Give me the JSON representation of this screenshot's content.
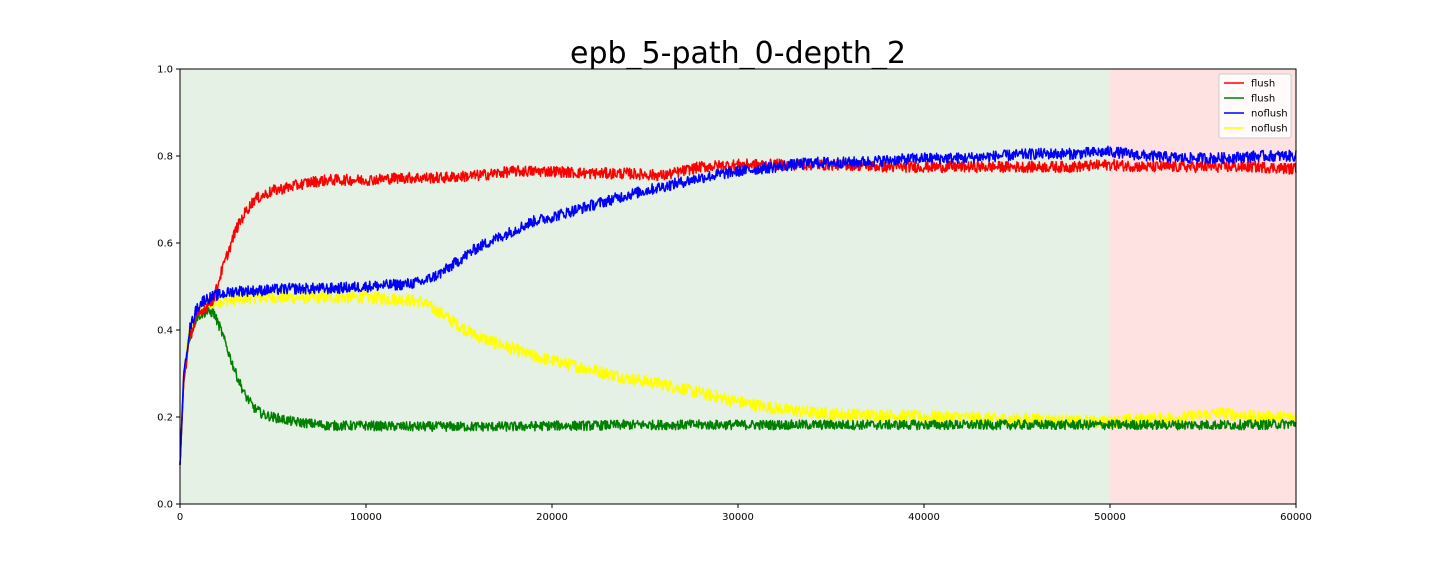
{
  "chart_data": {
    "type": "line",
    "title": "epb_5-path_0-depth_2",
    "xlabel": "",
    "ylabel": "",
    "xlim": [
      0,
      60000
    ],
    "ylim": [
      0.0,
      1.0
    ],
    "x_ticks": [
      0,
      10000,
      20000,
      30000,
      40000,
      50000,
      60000
    ],
    "x_tick_labels": [
      "0",
      "10000",
      "20000",
      "30000",
      "40000",
      "50000",
      "60000"
    ],
    "y_ticks": [
      0.0,
      0.2,
      0.4,
      0.6,
      0.8,
      1.0
    ],
    "y_tick_labels": [
      "0.0",
      "0.2",
      "0.4",
      "0.6",
      "0.8",
      "1.0"
    ],
    "grid": false,
    "legend_position": "top-right",
    "background_regions": [
      {
        "x_range": [
          0,
          50000
        ],
        "color": "#e5f1e5"
      },
      {
        "x_range": [
          50000,
          60000
        ],
        "color": "#fee2e2"
      }
    ],
    "series": [
      {
        "name": "flush",
        "color": "#ff0000",
        "noise": 0.008,
        "x": [
          0,
          200,
          500,
          900,
          1300,
          1800,
          2200,
          2600,
          3000,
          3500,
          4000,
          4500,
          5000,
          6000,
          7000,
          8000,
          10000,
          12000,
          14000,
          16000,
          18000,
          20000,
          22000,
          24000,
          26000,
          28000,
          30000,
          32000,
          34000,
          36000,
          38000,
          40000,
          42000,
          44000,
          46000,
          48000,
          50000,
          52000,
          54000,
          56000,
          58000,
          60000
        ],
        "y": [
          0.09,
          0.28,
          0.38,
          0.43,
          0.45,
          0.47,
          0.53,
          0.58,
          0.63,
          0.67,
          0.7,
          0.71,
          0.72,
          0.73,
          0.74,
          0.745,
          0.745,
          0.75,
          0.75,
          0.755,
          0.765,
          0.765,
          0.76,
          0.76,
          0.755,
          0.775,
          0.78,
          0.78,
          0.78,
          0.78,
          0.775,
          0.775,
          0.775,
          0.775,
          0.775,
          0.775,
          0.78,
          0.775,
          0.775,
          0.775,
          0.775,
          0.77
        ]
      },
      {
        "name": "flush",
        "color": "#008000",
        "noise": 0.007,
        "x": [
          0,
          200,
          500,
          900,
          1300,
          1800,
          2200,
          2600,
          3000,
          3500,
          4000,
          4500,
          5000,
          6000,
          7000,
          8000,
          10000,
          12000,
          14000,
          16000,
          18000,
          20000,
          22000,
          24000,
          26000,
          28000,
          30000,
          32000,
          34000,
          36000,
          38000,
          40000,
          42000,
          44000,
          46000,
          48000,
          50000,
          52000,
          54000,
          56000,
          58000,
          60000
        ],
        "y": [
          0.09,
          0.28,
          0.38,
          0.43,
          0.44,
          0.44,
          0.4,
          0.35,
          0.3,
          0.25,
          0.22,
          0.205,
          0.2,
          0.19,
          0.185,
          0.18,
          0.18,
          0.178,
          0.178,
          0.178,
          0.178,
          0.18,
          0.18,
          0.182,
          0.182,
          0.182,
          0.182,
          0.182,
          0.182,
          0.182,
          0.182,
          0.182,
          0.182,
          0.182,
          0.182,
          0.182,
          0.182,
          0.182,
          0.182,
          0.182,
          0.182,
          0.185
        ]
      },
      {
        "name": "noflush",
        "color": "#0000ff",
        "noise": 0.008,
        "x": [
          0,
          200,
          500,
          900,
          1300,
          2000,
          3000,
          4000,
          6000,
          8000,
          10000,
          12000,
          13000,
          14000,
          15000,
          16000,
          17000,
          18000,
          19000,
          20000,
          22000,
          24000,
          26000,
          28000,
          30000,
          32000,
          34000,
          36000,
          38000,
          40000,
          42000,
          44000,
          46000,
          48000,
          50000,
          52000,
          54000,
          56000,
          58000,
          60000
        ],
        "y": [
          0.09,
          0.3,
          0.4,
          0.45,
          0.47,
          0.48,
          0.49,
          0.49,
          0.495,
          0.495,
          0.5,
          0.505,
          0.51,
          0.53,
          0.56,
          0.59,
          0.61,
          0.63,
          0.65,
          0.66,
          0.685,
          0.71,
          0.73,
          0.75,
          0.765,
          0.775,
          0.785,
          0.785,
          0.79,
          0.795,
          0.795,
          0.8,
          0.805,
          0.805,
          0.81,
          0.8,
          0.795,
          0.795,
          0.8,
          0.8
        ]
      },
      {
        "name": "noflush",
        "color": "#ffff00",
        "noise": 0.009,
        "x": [
          0,
          200,
          500,
          900,
          1300,
          2000,
          3000,
          4000,
          6000,
          8000,
          10000,
          12000,
          13000,
          14000,
          15000,
          16000,
          17000,
          18000,
          19000,
          20000,
          22000,
          24000,
          26000,
          28000,
          30000,
          32000,
          34000,
          36000,
          38000,
          40000,
          42000,
          44000,
          46000,
          48000,
          50000,
          52000,
          54000,
          56000,
          58000,
          60000
        ],
        "y": [
          0.09,
          0.3,
          0.4,
          0.43,
          0.45,
          0.465,
          0.47,
          0.475,
          0.475,
          0.475,
          0.475,
          0.47,
          0.465,
          0.44,
          0.41,
          0.385,
          0.37,
          0.355,
          0.34,
          0.33,
          0.31,
          0.29,
          0.275,
          0.255,
          0.235,
          0.22,
          0.21,
          0.205,
          0.205,
          0.2,
          0.2,
          0.195,
          0.195,
          0.19,
          0.19,
          0.195,
          0.2,
          0.21,
          0.2,
          0.2
        ]
      }
    ]
  }
}
